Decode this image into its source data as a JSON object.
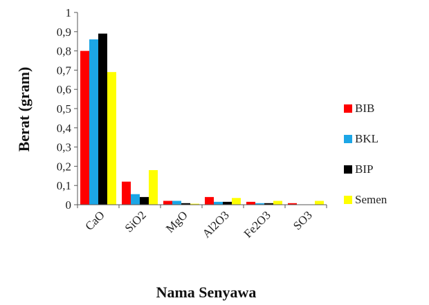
{
  "chart_data": {
    "type": "bar",
    "title": "",
    "xlabel": "Nama Senyawa",
    "ylabel": "Berat (gram)",
    "ylim": [
      0,
      1
    ],
    "yticks": [
      "0",
      "0,1",
      "0,2",
      "0,3",
      "0,4",
      "0,5",
      "0,6",
      "0,7",
      "0,8",
      "0,9",
      "1"
    ],
    "categories": [
      "CaO",
      "SiO2",
      "MgO",
      "Al2O3",
      "Fe2O3",
      "SO3"
    ],
    "series": [
      {
        "name": "BIB",
        "color": "#ff0000",
        "values": [
          0.8,
          0.12,
          0.02,
          0.04,
          0.015,
          0.008
        ]
      },
      {
        "name": "BKL",
        "color": "#1ca6e6",
        "values": [
          0.86,
          0.055,
          0.02,
          0.015,
          0.008,
          0.0
        ]
      },
      {
        "name": "BIP",
        "color": "#000000",
        "values": [
          0.89,
          0.04,
          0.008,
          0.015,
          0.008,
          0.0
        ]
      },
      {
        "name": "Semen",
        "color": "#ffff00",
        "values": [
          0.69,
          0.18,
          0.005,
          0.035,
          0.02,
          0.02
        ]
      }
    ],
    "legend_position": "right",
    "grid": false
  }
}
